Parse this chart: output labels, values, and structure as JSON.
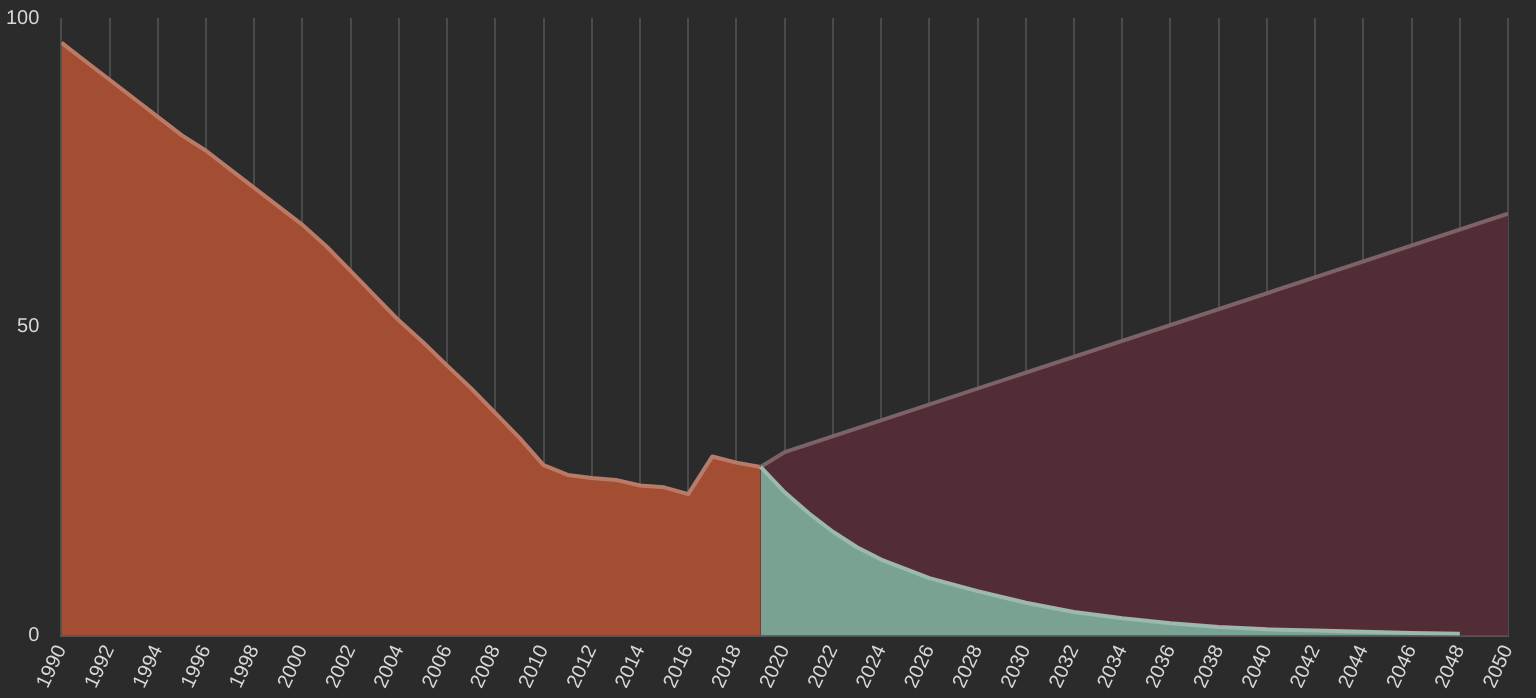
{
  "chart_data": {
    "type": "area",
    "xlim": [
      1990,
      2050
    ],
    "xticks": [
      1990,
      1992,
      1994,
      1996,
      1998,
      2000,
      2002,
      2004,
      2006,
      2008,
      2010,
      2012,
      2014,
      2016,
      2018,
      2020,
      2022,
      2024,
      2026,
      2028,
      2030,
      2032,
      2034,
      2036,
      2038,
      2040,
      2042,
      2044,
      2046,
      2048,
      2050
    ],
    "ylim": [
      0,
      100
    ],
    "yticks": [
      0,
      50,
      100
    ],
    "grid": "x",
    "series": [
      {
        "color": "#a34e33",
        "x": [
          1990,
          1991,
          1992,
          1993,
          1994,
          1995,
          1996,
          1997,
          1998,
          1999,
          2000,
          2001,
          2002,
          2003,
          2004,
          2005,
          2006,
          2007,
          2008,
          2009,
          2010,
          2011,
          2012,
          2013,
          2014,
          2015,
          2016,
          2017,
          2018,
          2019
        ],
        "values": [
          96,
          93,
          90,
          87,
          84,
          81,
          78.5,
          75.5,
          72.5,
          69.5,
          66.5,
          63,
          59,
          55,
          51,
          47.5,
          43.7,
          40,
          36,
          32,
          27.6,
          26,
          25.5,
          25.2,
          24.3,
          24,
          22.9,
          29,
          28,
          27.3
        ]
      },
      {
        "color": "#532d35",
        "x": [
          2019,
          2020,
          2050
        ],
        "values": [
          27.3,
          29.7,
          68.3
        ]
      },
      {
        "color": "#7aa293",
        "x": [
          2019,
          2020,
          2021,
          2022,
          2023,
          2024,
          2026,
          2028,
          2030,
          2032,
          2034,
          2036,
          2038,
          2040,
          2042,
          2044,
          2046,
          2048
        ],
        "values": [
          27.3,
          23.2,
          19.8,
          16.8,
          14.3,
          12.3,
          9.3,
          7.2,
          5.3,
          3.8,
          2.8,
          2,
          1.4,
          1,
          0.8,
          0.6,
          0.4,
          0.3
        ]
      }
    ]
  }
}
